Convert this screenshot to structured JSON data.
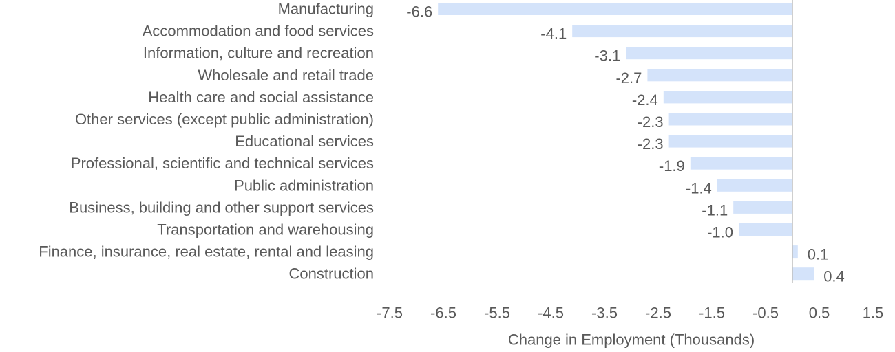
{
  "chart_data": {
    "type": "bar",
    "orientation": "horizontal",
    "categories": [
      "Manufacturing",
      "Accommodation and food services",
      "Information, culture and recreation",
      "Wholesale and retail trade",
      "Health care and social assistance",
      "Other services (except public administration)",
      "Educational services",
      "Professional, scientific and technical services",
      "Public administration",
      "Business, building and other support services",
      "Transportation and warehousing",
      "Finance, insurance, real estate, rental and leasing",
      "Construction"
    ],
    "values": [
      -6.6,
      -4.1,
      -3.1,
      -2.7,
      -2.4,
      -2.3,
      -2.3,
      -1.9,
      -1.4,
      -1.1,
      -1.0,
      0.1,
      0.4
    ],
    "data_labels": [
      "-6.6",
      "-4.1",
      "-3.1",
      "-2.7",
      "-2.4",
      "-2.3",
      "-2.3",
      "-1.9",
      "-1.4",
      "-1.1",
      "-1.0",
      "0.1",
      "0.4"
    ],
    "x_ticks": [
      "-7.5",
      "-6.5",
      "-5.5",
      "-4.5",
      "-3.5",
      "-2.5",
      "-1.5",
      "-0.5",
      "0.5",
      "1.5"
    ],
    "xlabel": "Change in Employment (Thousands)",
    "ylabel": "",
    "title": "",
    "xlim": [
      -7.5,
      1.5
    ],
    "grid": false,
    "legend": "none",
    "colors": {
      "bar": "#d4e3fa",
      "zero_line": "#bfbfbf",
      "text": "#595959"
    }
  }
}
